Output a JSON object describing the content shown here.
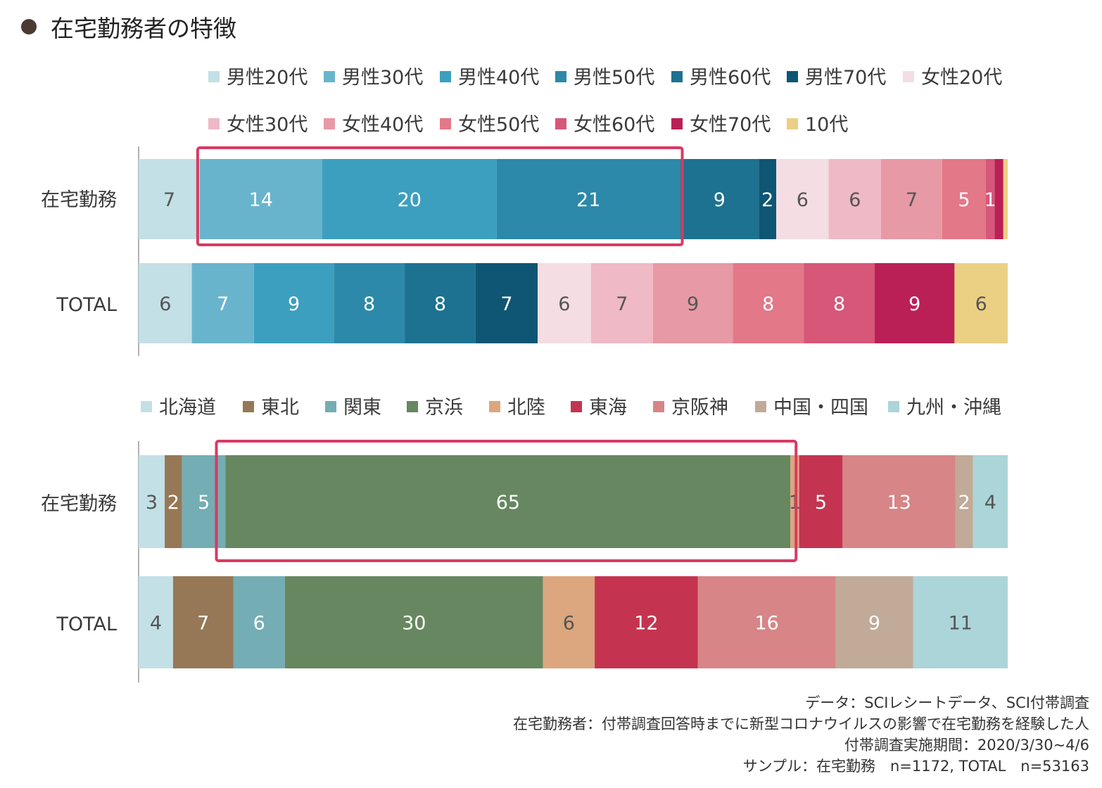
{
  "title": "在宅勤務者の特徴",
  "colors": {
    "highlight": "#d93a62",
    "label_light": "#ffffff",
    "label_dark": "#555555",
    "axis": "#999999"
  },
  "chart_data": [
    {
      "type": "bar",
      "orientation": "horizontal",
      "stacked": "100%",
      "categories": [
        "在宅勤務",
        "TOTAL"
      ],
      "legend_position": "top",
      "series": [
        {
          "name": "男性20代",
          "color": "#c2e0e6",
          "values": [
            7,
            6
          ]
        },
        {
          "name": "男性30代",
          "color": "#69b4cd",
          "values": [
            14,
            7
          ]
        },
        {
          "name": "男性40代",
          "color": "#3d9fbf",
          "values": [
            20,
            9
          ]
        },
        {
          "name": "男性50代",
          "color": "#2c89a9",
          "values": [
            21,
            8
          ]
        },
        {
          "name": "男性60代",
          "color": "#1c7290",
          "values": [
            9,
            8
          ]
        },
        {
          "name": "男性70代",
          "color": "#0e5673",
          "values": [
            2,
            7
          ]
        },
        {
          "name": "女性20代",
          "color": "#f4dde3",
          "values": [
            6,
            6
          ]
        },
        {
          "name": "女性30代",
          "color": "#efb9c5",
          "values": [
            6,
            7
          ]
        },
        {
          "name": "女性40代",
          "color": "#e899a6",
          "values": [
            7,
            9
          ]
        },
        {
          "name": "女性50代",
          "color": "#e27888",
          "values": [
            5,
            8
          ]
        },
        {
          "name": "女性60代",
          "color": "#d65777",
          "values": [
            1,
            8
          ]
        },
        {
          "name": "女性70代",
          "color": "#ba2055",
          "values": [
            1,
            9
          ]
        },
        {
          "name": "10代",
          "color": "#ebd084",
          "values": [
            0.5,
            6
          ]
        }
      ],
      "labels": [
        [
          "7",
          "14",
          "20",
          "21",
          "9",
          "2",
          "6",
          "6",
          "7",
          "5",
          "1",
          "",
          ""
        ],
        [
          "6",
          "7",
          "9",
          "8",
          "8",
          "7",
          "6",
          "7",
          "9",
          "8",
          "8",
          "9",
          "6"
        ]
      ],
      "highlight": {
        "row": 0,
        "from_series": 1,
        "to_series": 3
      }
    },
    {
      "type": "bar",
      "orientation": "horizontal",
      "stacked": "100%",
      "categories": [
        "在宅勤務",
        "TOTAL"
      ],
      "legend_position": "top",
      "series": [
        {
          "name": "北海道",
          "color": "#c2e0e6",
          "values": [
            3,
            4
          ]
        },
        {
          "name": "東北",
          "color": "#967856",
          "values": [
            2,
            7
          ]
        },
        {
          "name": "関東",
          "color": "#74adb3",
          "values": [
            5,
            6
          ]
        },
        {
          "name": "京浜",
          "color": "#668760",
          "values": [
            65,
            30
          ]
        },
        {
          "name": "北陸",
          "color": "#dca67e",
          "values": [
            1,
            6
          ]
        },
        {
          "name": "東海",
          "color": "#c43450",
          "values": [
            5,
            12
          ]
        },
        {
          "name": "京阪神",
          "color": "#d78587",
          "values": [
            13,
            16
          ]
        },
        {
          "name": "中国・四国",
          "color": "#c1aa98",
          "values": [
            2,
            9
          ]
        },
        {
          "name": "九州・沖縄",
          "color": "#abd5d8",
          "values": [
            4,
            11
          ]
        }
      ],
      "labels": [
        [
          "3",
          "2",
          "5",
          "65",
          "1",
          "5",
          "13",
          "2",
          "4"
        ],
        [
          "4",
          "7",
          "6",
          "30",
          "6",
          "12",
          "16",
          "9",
          "11"
        ]
      ],
      "highlight": {
        "row": 0,
        "from_series": 3,
        "to_series": 3
      }
    }
  ],
  "notes": [
    "データ：SCIレシートデータ、SCI付帯調査",
    "在宅勤務者：付帯調査回答時までに新型コロナウイルスの影響で在宅勤務を経験した人",
    "付帯調査実施期間：2020/3/30~4/6",
    "サンプル：在宅勤務　n=1172,  TOTAL　n=53163"
  ]
}
